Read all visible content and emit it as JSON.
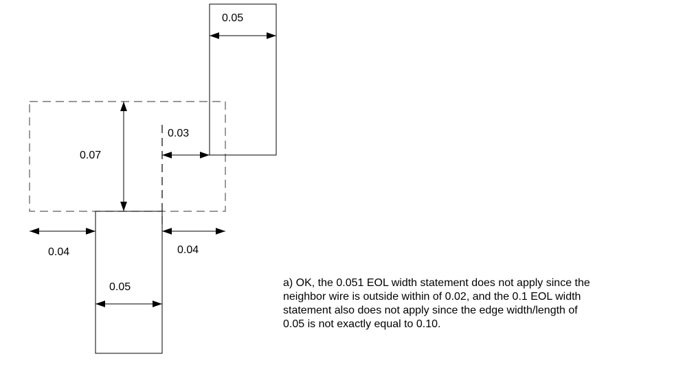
{
  "diagram": {
    "labels": {
      "top_wire_width": "0.05",
      "spacing_right": "0.03",
      "eol_window_height": "0.07",
      "left_extension": "0.04",
      "right_extension": "0.04",
      "bottom_wire_width": "0.05"
    },
    "caption_lines": [
      "a) OK, the 0.051 EOL width statement does not apply since the",
      "neighbor wire is outside within of 0.02, and the 0.1 EOL width",
      "statement also does not apply since the edge width/length of",
      "0.05 is not exactly equal to 0.10."
    ],
    "colors": {
      "stroke": "#000000",
      "dashed_stroke": "#5a5a5a"
    }
  }
}
